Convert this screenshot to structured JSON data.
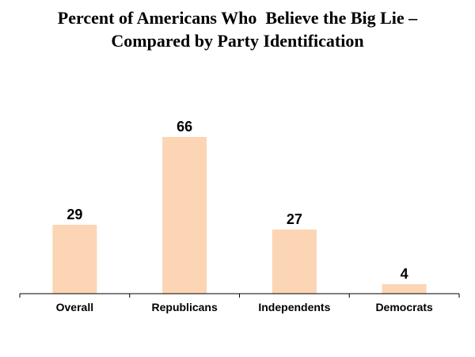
{
  "title_lines": [
    "Percent of Americans Who  Believe the Big Lie –",
    "Compared by Party Identification"
  ],
  "chart_data": {
    "type": "bar",
    "title": "Percent of Americans Who  Believe the Big Lie – Compared by Party Identification",
    "categories": [
      "Overall",
      "Republicans",
      "Independents",
      "Democrats"
    ],
    "values": [
      29,
      66,
      27,
      4
    ],
    "data_labels": [
      "29",
      "66",
      "27",
      "4"
    ],
    "ylim": [
      0,
      76
    ],
    "grid": false,
    "legend": "none",
    "bar_color": "#FCD5B5",
    "axis_color": "#000000"
  }
}
